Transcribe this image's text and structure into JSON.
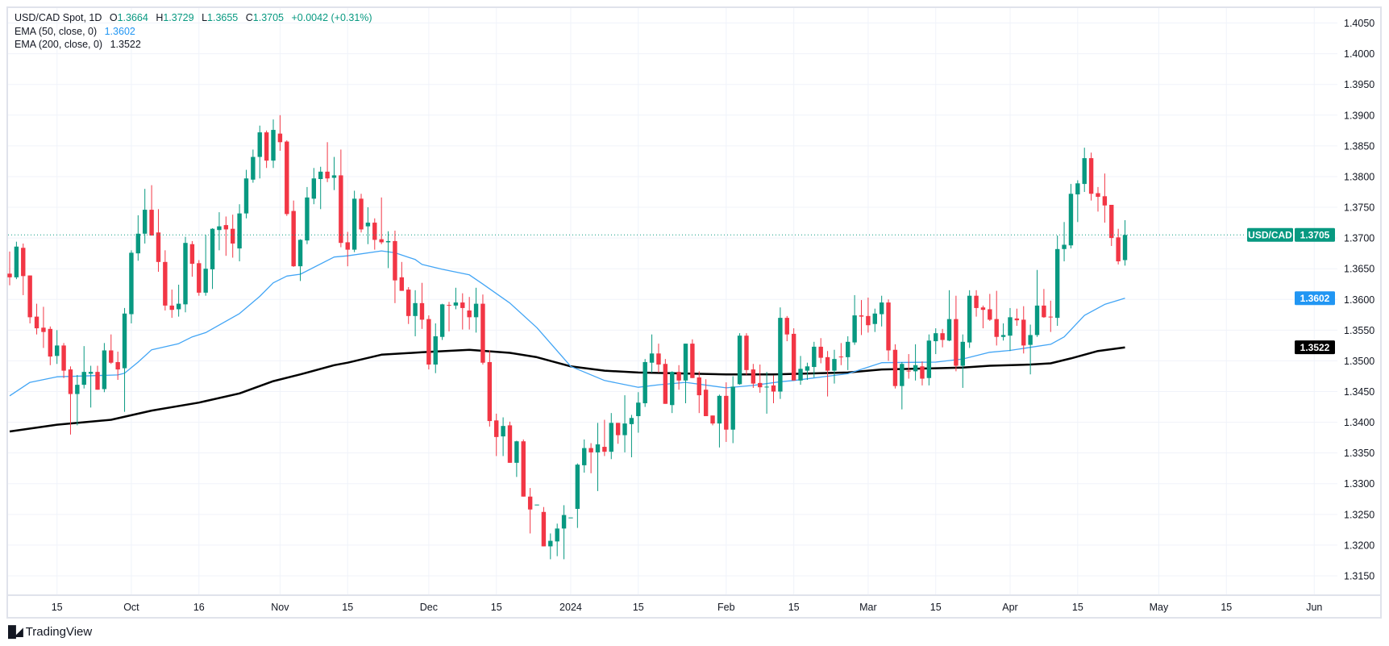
{
  "header": {
    "symbol": "USD/CAD Spot, 1D",
    "o_label": "O",
    "o": "1.3664",
    "h_label": "H",
    "h": "1.3729",
    "l_label": "L",
    "l": "1.3655",
    "c_label": "C",
    "c": "1.3705",
    "change": "+0.0042 (+0.31%)"
  },
  "indicators": [
    {
      "label": "EMA (50, close, 0)",
      "value": "1.3602",
      "color": "#2196f3"
    },
    {
      "label": "EMA (200, close, 0)",
      "value": "1.3522",
      "color": "#000000"
    }
  ],
  "price_tag": {
    "symbol": "USD/CAD",
    "value": "1.3705"
  },
  "branding": "TradingView",
  "chart_data": {
    "type": "candlestick",
    "title": "USD/CAD Spot, 1D",
    "ylim": [
      1.312,
      1.4075
    ],
    "grid": true,
    "colors": {
      "up": "#089981",
      "down": "#f23645",
      "ema50": "#42a5f5",
      "ema200": "#000000",
      "grid": "#f0f3fa"
    },
    "last_price": 1.3705,
    "y_ticks": [
      "1.4050",
      "1.4000",
      "1.3950",
      "1.3900",
      "1.3850",
      "1.3800",
      "1.3750",
      "1.3700",
      "1.3650",
      "1.3600",
      "1.3550",
      "1.3500",
      "1.3450",
      "1.3400",
      "1.3350",
      "1.3300",
      "1.3250",
      "1.3200",
      "1.3150"
    ],
    "x_ticks": [
      {
        "label": "15",
        "index": 7
      },
      {
        "label": "Oct",
        "index": 18
      },
      {
        "label": "16",
        "index": 28
      },
      {
        "label": "Nov",
        "index": 40
      },
      {
        "label": "15",
        "index": 50
      },
      {
        "label": "Dec",
        "index": 62
      },
      {
        "label": "15",
        "index": 72
      },
      {
        "label": "2024",
        "index": 83
      },
      {
        "label": "15",
        "index": 93
      },
      {
        "label": "Feb",
        "index": 106
      },
      {
        "label": "15",
        "index": 116
      },
      {
        "label": "Mar",
        "index": 127
      },
      {
        "label": "15",
        "index": 137
      },
      {
        "label": "Apr",
        "index": 148
      },
      {
        "label": "15",
        "index": 158
      },
      {
        "label": "May",
        "index": 170
      },
      {
        "label": "15",
        "index": 180
      },
      {
        "label": "Jun",
        "index": 193
      }
    ],
    "ohlc": [
      [
        1.3642,
        1.3678,
        1.3623,
        1.3636
      ],
      [
        1.3636,
        1.3694,
        1.3633,
        1.3686
      ],
      [
        1.3684,
        1.3691,
        1.3607,
        1.3638
      ],
      [
        1.3639,
        1.3639,
        1.3561,
        1.3571
      ],
      [
        1.3572,
        1.3593,
        1.3543,
        1.3553
      ],
      [
        1.3554,
        1.3588,
        1.3521,
        1.3547
      ],
      [
        1.3552,
        1.3556,
        1.3493,
        1.3507
      ],
      [
        1.3508,
        1.355,
        1.3495,
        1.3525
      ],
      [
        1.3525,
        1.3529,
        1.3472,
        1.3484
      ],
      [
        1.3486,
        1.3491,
        1.338,
        1.3446
      ],
      [
        1.3446,
        1.3477,
        1.3395,
        1.3461
      ],
      [
        1.3461,
        1.3524,
        1.3455,
        1.3482
      ],
      [
        1.3479,
        1.3492,
        1.3424,
        1.3482
      ],
      [
        1.3482,
        1.3492,
        1.3453,
        1.3453
      ],
      [
        1.3454,
        1.3529,
        1.3449,
        1.3517
      ],
      [
        1.3517,
        1.3543,
        1.3495,
        1.3497
      ],
      [
        1.3498,
        1.3515,
        1.3469,
        1.3486
      ],
      [
        1.3488,
        1.3586,
        1.3417,
        1.3577
      ],
      [
        1.3576,
        1.368,
        1.3561,
        1.3676
      ],
      [
        1.3675,
        1.3737,
        1.3663,
        1.3707
      ],
      [
        1.3707,
        1.378,
        1.3691,
        1.3746
      ],
      [
        1.3746,
        1.3786,
        1.3704,
        1.3704
      ],
      [
        1.3709,
        1.3747,
        1.3645,
        1.3661
      ],
      [
        1.3661,
        1.368,
        1.3582,
        1.359
      ],
      [
        1.359,
        1.3616,
        1.357,
        1.3583
      ],
      [
        1.3584,
        1.3624,
        1.3572,
        1.3593
      ],
      [
        1.3592,
        1.3702,
        1.3579,
        1.3692
      ],
      [
        1.369,
        1.3695,
        1.3637,
        1.3658
      ],
      [
        1.3659,
        1.3664,
        1.3606,
        1.3611
      ],
      [
        1.3611,
        1.3705,
        1.3606,
        1.365
      ],
      [
        1.3649,
        1.3716,
        1.3617,
        1.3715
      ],
      [
        1.3713,
        1.3742,
        1.368,
        1.3719
      ],
      [
        1.3721,
        1.3735,
        1.3671,
        1.3714
      ],
      [
        1.3715,
        1.3738,
        1.3668,
        1.3691
      ],
      [
        1.3683,
        1.3755,
        1.3662,
        1.374
      ],
      [
        1.374,
        1.3811,
        1.3732,
        1.3797
      ],
      [
        1.3795,
        1.3844,
        1.379,
        1.3832
      ],
      [
        1.3832,
        1.3883,
        1.3797,
        1.3872
      ],
      [
        1.3872,
        1.3875,
        1.3814,
        1.3826
      ],
      [
        1.3826,
        1.3893,
        1.3814,
        1.3876
      ],
      [
        1.387,
        1.39,
        1.3842,
        1.3856
      ],
      [
        1.3857,
        1.3859,
        1.3736,
        1.3739
      ],
      [
        1.3744,
        1.3761,
        1.3653,
        1.3654
      ],
      [
        1.3654,
        1.3698,
        1.363,
        1.3697
      ],
      [
        1.3696,
        1.3783,
        1.369,
        1.3766
      ],
      [
        1.3764,
        1.3814,
        1.3755,
        1.3797
      ],
      [
        1.3796,
        1.3816,
        1.3747,
        1.3808
      ],
      [
        1.3808,
        1.3856,
        1.3791,
        1.3797
      ],
      [
        1.3798,
        1.3832,
        1.3778,
        1.3802
      ],
      [
        1.3802,
        1.3844,
        1.3685,
        1.3692
      ],
      [
        1.3693,
        1.371,
        1.3654,
        1.3681
      ],
      [
        1.3681,
        1.3777,
        1.3677,
        1.3764
      ],
      [
        1.3764,
        1.3772,
        1.3709,
        1.3714
      ],
      [
        1.3719,
        1.375,
        1.369,
        1.3725
      ],
      [
        1.3725,
        1.3732,
        1.3681,
        1.3697
      ],
      [
        1.3698,
        1.3766,
        1.369,
        1.3693
      ],
      [
        1.3693,
        1.3711,
        1.3651,
        1.3695
      ],
      [
        1.3695,
        1.3712,
        1.3594,
        1.3631
      ],
      [
        1.3636,
        1.3661,
        1.3614,
        1.3614
      ],
      [
        1.3616,
        1.362,
        1.356,
        1.3573
      ],
      [
        1.3573,
        1.3615,
        1.354,
        1.3594
      ],
      [
        1.3594,
        1.3627,
        1.3552,
        1.3567
      ],
      [
        1.3568,
        1.3574,
        1.3486,
        1.3494
      ],
      [
        1.3494,
        1.3561,
        1.348,
        1.354
      ],
      [
        1.3539,
        1.3593,
        1.3534,
        1.3592
      ],
      [
        1.3591,
        1.3596,
        1.3548,
        1.359
      ],
      [
        1.359,
        1.3619,
        1.3584,
        1.3595
      ],
      [
        1.3595,
        1.361,
        1.3551,
        1.3586
      ],
      [
        1.3582,
        1.3604,
        1.3551,
        1.3571
      ],
      [
        1.3571,
        1.3619,
        1.3546,
        1.3593
      ],
      [
        1.3593,
        1.3608,
        1.3494,
        1.3497
      ],
      [
        1.3498,
        1.3517,
        1.3393,
        1.3402
      ],
      [
        1.3403,
        1.3414,
        1.3345,
        1.3376
      ],
      [
        1.3377,
        1.3408,
        1.3345,
        1.3394
      ],
      [
        1.3395,
        1.3401,
        1.3334,
        1.3334
      ],
      [
        1.3334,
        1.337,
        1.3311,
        1.3369
      ],
      [
        1.3369,
        1.3372,
        1.3279,
        1.3279
      ],
      [
        1.3279,
        1.3293,
        1.3219,
        1.3258
      ],
      [
        1.3266,
        1.3266,
        1.3266,
        1.3266
      ],
      [
        1.3254,
        1.3262,
        1.3198,
        1.3198
      ],
      [
        1.3198,
        1.3219,
        1.3177,
        1.3207
      ],
      [
        1.3206,
        1.3235,
        1.3182,
        1.3227
      ],
      [
        1.3227,
        1.3265,
        1.3177,
        1.3249
      ],
      [
        1.3245,
        1.3245,
        1.3245,
        1.3245
      ],
      [
        1.3259,
        1.3333,
        1.3228,
        1.3331
      ],
      [
        1.333,
        1.3372,
        1.3318,
        1.3358
      ],
      [
        1.3358,
        1.3366,
        1.3317,
        1.3351
      ],
      [
        1.3351,
        1.3399,
        1.3288,
        1.3364
      ],
      [
        1.336,
        1.3404,
        1.3345,
        1.3352
      ],
      [
        1.3352,
        1.3415,
        1.334,
        1.3399
      ],
      [
        1.3399,
        1.3399,
        1.3365,
        1.3379
      ],
      [
        1.3379,
        1.3444,
        1.3351,
        1.3398
      ],
      [
        1.3397,
        1.3412,
        1.3343,
        1.3407
      ],
      [
        1.341,
        1.3449,
        1.3383,
        1.3432
      ],
      [
        1.3431,
        1.3503,
        1.3425,
        1.3498
      ],
      [
        1.3497,
        1.3543,
        1.3481,
        1.3512
      ],
      [
        1.3512,
        1.3528,
        1.3481,
        1.3494
      ],
      [
        1.3495,
        1.3503,
        1.343,
        1.343
      ],
      [
        1.3428,
        1.3483,
        1.3415,
        1.3482
      ],
      [
        1.3482,
        1.3493,
        1.3453,
        1.3468
      ],
      [
        1.3468,
        1.3528,
        1.3431,
        1.3528
      ],
      [
        1.3528,
        1.3535,
        1.3472,
        1.3472
      ],
      [
        1.3473,
        1.3483,
        1.3415,
        1.3444
      ],
      [
        1.3453,
        1.347,
        1.341,
        1.341
      ],
      [
        1.3411,
        1.3411,
        1.3395,
        1.3398
      ],
      [
        1.3398,
        1.3445,
        1.3359,
        1.3443
      ],
      [
        1.3443,
        1.3465,
        1.3368,
        1.3388
      ],
      [
        1.3388,
        1.3475,
        1.3366,
        1.3458
      ],
      [
        1.3462,
        1.3545,
        1.3461,
        1.3541
      ],
      [
        1.3541,
        1.3545,
        1.3477,
        1.3485
      ],
      [
        1.3486,
        1.3495,
        1.3456,
        1.3463
      ],
      [
        1.3464,
        1.3494,
        1.3448,
        1.3457
      ],
      [
        1.3457,
        1.3482,
        1.3414,
        1.3458
      ],
      [
        1.346,
        1.3476,
        1.3431,
        1.345
      ],
      [
        1.345,
        1.3587,
        1.3438,
        1.357
      ],
      [
        1.357,
        1.3573,
        1.3532,
        1.3543
      ],
      [
        1.3544,
        1.3553,
        1.3468,
        1.3468
      ],
      [
        1.3468,
        1.3508,
        1.3461,
        1.3487
      ],
      [
        1.3484,
        1.3497,
        1.3469,
        1.3491
      ],
      [
        1.349,
        1.3531,
        1.3473,
        1.3523
      ],
      [
        1.3523,
        1.3537,
        1.3496,
        1.3505
      ],
      [
        1.3506,
        1.3516,
        1.3442,
        1.3484
      ],
      [
        1.3484,
        1.3518,
        1.3463,
        1.3503
      ],
      [
        1.3507,
        1.3529,
        1.3493,
        1.3506
      ],
      [
        1.3506,
        1.354,
        1.3485,
        1.3531
      ],
      [
        1.353,
        1.3607,
        1.3526,
        1.3574
      ],
      [
        1.3574,
        1.3599,
        1.3542,
        1.3572
      ],
      [
        1.3573,
        1.3603,
        1.3546,
        1.3558
      ],
      [
        1.356,
        1.3585,
        1.3547,
        1.3577
      ],
      [
        1.3576,
        1.3606,
        1.3556,
        1.3595
      ],
      [
        1.3595,
        1.36,
        1.35,
        1.3517
      ],
      [
        1.3518,
        1.3527,
        1.3455,
        1.3459
      ],
      [
        1.3459,
        1.3498,
        1.3421,
        1.3495
      ],
      [
        1.3484,
        1.3511,
        1.3471,
        1.3483
      ],
      [
        1.3483,
        1.3527,
        1.3468,
        1.3493
      ],
      [
        1.3491,
        1.3499,
        1.346,
        1.3471
      ],
      [
        1.3472,
        1.3543,
        1.346,
        1.3533
      ],
      [
        1.3532,
        1.3553,
        1.3511,
        1.3545
      ],
      [
        1.3545,
        1.3552,
        1.3522,
        1.3534
      ],
      [
        1.3533,
        1.3615,
        1.3532,
        1.3568
      ],
      [
        1.3568,
        1.3606,
        1.3483,
        1.3492
      ],
      [
        1.3492,
        1.3543,
        1.3456,
        1.3531
      ],
      [
        1.353,
        1.3615,
        1.3521,
        1.3606
      ],
      [
        1.3606,
        1.3615,
        1.3572,
        1.3586
      ],
      [
        1.3587,
        1.359,
        1.3553,
        1.3583
      ],
      [
        1.3584,
        1.3609,
        1.3565,
        1.3567
      ],
      [
        1.3568,
        1.3614,
        1.3525,
        1.3539
      ],
      [
        1.3539,
        1.3561,
        1.3533,
        1.3542
      ],
      [
        1.3541,
        1.3586,
        1.3516,
        1.3571
      ],
      [
        1.3569,
        1.3585,
        1.3557,
        1.3566
      ],
      [
        1.3567,
        1.3589,
        1.3512,
        1.3525
      ],
      [
        1.3526,
        1.3559,
        1.3478,
        1.3542
      ],
      [
        1.3542,
        1.3648,
        1.3539,
        1.359
      ],
      [
        1.359,
        1.3617,
        1.357,
        1.3571
      ],
      [
        1.3572,
        1.3598,
        1.3547,
        1.3571
      ],
      [
        1.357,
        1.3704,
        1.3557,
        1.3682
      ],
      [
        1.3682,
        1.3726,
        1.3662,
        1.3689
      ],
      [
        1.3688,
        1.3788,
        1.3683,
        1.3772
      ],
      [
        1.3771,
        1.3794,
        1.3726,
        1.3789
      ],
      [
        1.3788,
        1.3847,
        1.3775,
        1.383
      ],
      [
        1.383,
        1.3839,
        1.3761,
        1.3772
      ],
      [
        1.3773,
        1.3783,
        1.3743,
        1.3767
      ],
      [
        1.3768,
        1.3805,
        1.3725,
        1.3753
      ],
      [
        1.3754,
        1.3754,
        1.3687,
        1.37
      ],
      [
        1.3701,
        1.3715,
        1.3657,
        1.3662
      ],
      [
        1.3664,
        1.3729,
        1.3655,
        1.3705
      ]
    ],
    "ema50": [
      [
        0,
        1.3443
      ],
      [
        3,
        1.3465
      ],
      [
        7,
        1.3474
      ],
      [
        16,
        1.3477
      ],
      [
        17,
        1.348
      ],
      [
        19,
        1.3498
      ],
      [
        21,
        1.3518
      ],
      [
        25,
        1.3528
      ],
      [
        27,
        1.3539
      ],
      [
        29,
        1.3546
      ],
      [
        34,
        1.3577
      ],
      [
        37,
        1.3605
      ],
      [
        39,
        1.3627
      ],
      [
        41,
        1.3638
      ],
      [
        43,
        1.3641
      ],
      [
        48,
        1.3669
      ],
      [
        50,
        1.3671
      ],
      [
        55,
        1.3679
      ],
      [
        57,
        1.3676
      ],
      [
        60,
        1.3665
      ],
      [
        61,
        1.3657
      ],
      [
        64,
        1.3649
      ],
      [
        68,
        1.364
      ],
      [
        70,
        1.3625
      ],
      [
        74,
        1.3594
      ],
      [
        78,
        1.3554
      ],
      [
        83,
        1.3491
      ],
      [
        88,
        1.3468
      ],
      [
        93,
        1.3457
      ],
      [
        96,
        1.3461
      ],
      [
        100,
        1.3465
      ],
      [
        106,
        1.3456
      ],
      [
        110,
        1.346
      ],
      [
        114,
        1.3466
      ],
      [
        116,
        1.3468
      ],
      [
        121,
        1.3475
      ],
      [
        124,
        1.3479
      ],
      [
        129,
        1.3497
      ],
      [
        137,
        1.3498
      ],
      [
        141,
        1.3503
      ],
      [
        145,
        1.3514
      ],
      [
        148,
        1.3517
      ],
      [
        151,
        1.3522
      ],
      [
        154,
        1.3527
      ],
      [
        156,
        1.3539
      ],
      [
        159,
        1.3574
      ],
      [
        162,
        1.3592
      ],
      [
        165,
        1.3602
      ]
    ],
    "ema200": [
      [
        0,
        1.3385
      ],
      [
        7,
        1.3396
      ],
      [
        15,
        1.3404
      ],
      [
        21,
        1.3419
      ],
      [
        28,
        1.3432
      ],
      [
        34,
        1.3447
      ],
      [
        39,
        1.3467
      ],
      [
        43,
        1.3478
      ],
      [
        48,
        1.3493
      ],
      [
        50,
        1.3497
      ],
      [
        55,
        1.351
      ],
      [
        61,
        1.3514
      ],
      [
        68,
        1.3518
      ],
      [
        74,
        1.3513
      ],
      [
        78,
        1.3506
      ],
      [
        83,
        1.3491
      ],
      [
        88,
        1.3484
      ],
      [
        93,
        1.3481
      ],
      [
        106,
        1.3478
      ],
      [
        113,
        1.3478
      ],
      [
        124,
        1.3481
      ],
      [
        129,
        1.3486
      ],
      [
        137,
        1.3488
      ],
      [
        141,
        1.3489
      ],
      [
        145,
        1.3492
      ],
      [
        151,
        1.3494
      ],
      [
        154,
        1.3496
      ],
      [
        157,
        1.3504
      ],
      [
        161,
        1.3516
      ],
      [
        165,
        1.3522
      ]
    ]
  }
}
